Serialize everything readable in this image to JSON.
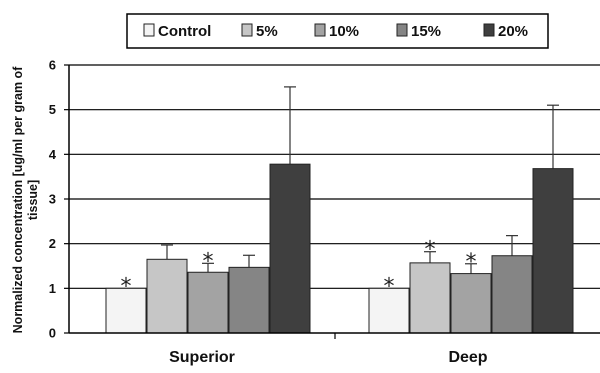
{
  "chart_data": {
    "type": "bar",
    "title": "",
    "xlabel": "",
    "ylabel": "Normalized concentration [ug/ml per gram of tissue]",
    "ylabel_lines": [
      "Normalized concentration [ug/ml per gram of",
      "tissue]"
    ],
    "ylim": [
      0,
      6
    ],
    "yticks": [
      "0",
      "1",
      "2",
      "3",
      "4",
      "5",
      "6"
    ],
    "grid": true,
    "legend_position": "top",
    "categories": [
      "Superior",
      "Deep"
    ],
    "series": [
      {
        "name": "Control",
        "color": "#f4f4f4",
        "values": [
          1.0,
          1.0
        ],
        "errors": [
          0,
          0
        ],
        "significant": [
          true,
          true
        ]
      },
      {
        "name": "5%",
        "color": "#c6c6c6",
        "values": [
          1.65,
          1.57
        ],
        "errors": [
          0.32,
          0.25
        ],
        "significant": [
          false,
          true
        ]
      },
      {
        "name": "10%",
        "color": "#a3a3a3",
        "values": [
          1.36,
          1.33
        ],
        "errors": [
          0.2,
          0.22
        ],
        "significant": [
          true,
          true
        ]
      },
      {
        "name": "15%",
        "color": "#858585",
        "values": [
          1.47,
          1.73
        ],
        "errors": [
          0.27,
          0.45
        ],
        "significant": [
          false,
          false
        ]
      },
      {
        "name": "20%",
        "color": "#3f3f3f",
        "values": [
          3.78,
          3.68
        ],
        "errors": [
          1.73,
          1.42
        ],
        "significant": [
          false,
          false
        ]
      }
    ],
    "significance_marker": "*"
  }
}
